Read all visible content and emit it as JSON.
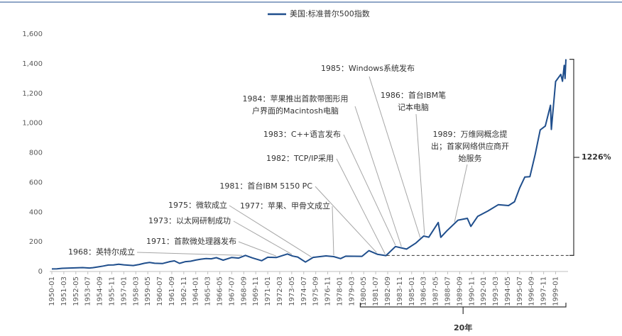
{
  "chart_data": {
    "type": "line",
    "legend": "美国:标准普尔500指数",
    "series": [
      {
        "name": "美国:标准普尔500指数",
        "color": "#1f4e8c",
        "values": [
          17,
          17.8,
          21.7,
          22.4,
          24.1,
          25,
          26.4,
          23.4,
          26,
          30.9,
          36.6,
          43.5,
          43.8,
          49.4,
          44.7,
          40,
          47.2,
          55.4,
          60.5,
          55.6,
          53.4,
          66.8,
          71.6,
          54.8,
          66.2,
          69.1,
          77,
          83.2,
          87.6,
          85.3,
          92.9,
          76.6,
          94.8,
          90.2,
          108.4,
          91.8,
          72.7,
          95.9,
          94,
          118,
          104,
          97.6,
          63.5,
          95.2,
          105.2,
          100.5,
          87,
          103.3,
          102.9,
          102,
          140.5,
          116.2,
          107.1,
          168.1,
          150.7,
          191.9,
          238.9,
          231.3,
          329.8,
          230.3,
          273.5,
          346,
          358,
          304,
          371,
          408,
          450,
          444,
          470,
          562,
          636,
          639,
          786,
          954,
          980,
          1120,
          957,
          1280,
          1328,
          1282,
          1389,
          1300,
          1430
        ]
      }
    ],
    "x": [
      "1950-01",
      "1950-07",
      "1951-01",
      "1951-07",
      "1952-01",
      "1952-07",
      "1953-01",
      "1953-09",
      "1954-01",
      "1954-07",
      "1955-01",
      "1955-07",
      "1956-01",
      "1956-07",
      "1957-01",
      "1957-12",
      "1958-07",
      "1959-01",
      "1959-07",
      "1960-01",
      "1960-10",
      "1961-07",
      "1961-12",
      "1962-06",
      "1963-01",
      "1963-07",
      "1964-01",
      "1964-07",
      "1965-01",
      "1965-07",
      "1966-01",
      "1966-09",
      "1967-07",
      "1968-03",
      "1968-11",
      "1969-07",
      "1970-06",
      "1971-01",
      "1971-11",
      "1972-12",
      "1973-06",
      "1973-12",
      "1974-09",
      "1975-06",
      "1976-09",
      "1977-06",
      "1978-02",
      "1978-08",
      "1979-06",
      "1980-03",
      "1980-11",
      "1981-09",
      "1982-07",
      "1983-06",
      "1984-07",
      "1985-06",
      "1986-03",
      "1986-09",
      "1987-08",
      "1987-11",
      "1988-06",
      "1989-07",
      "1990-06",
      "1990-10",
      "1991-06",
      "1992-06",
      "1993-06",
      "1994-06",
      "1995-01",
      "1995-07",
      "1996-01",
      "1996-07",
      "1997-01",
      "1997-07",
      "1998-01",
      "1998-07",
      "1998-08",
      "1999-01",
      "1999-07",
      "1999-09",
      "1999-11",
      "1999-12",
      "2000-01"
    ],
    "xlim": [
      "1950-01",
      "2000-01"
    ],
    "xticks": [
      "1950-01",
      "1951-03",
      "1952-05",
      "1953-07",
      "1954-09",
      "1955-11",
      "1957-01",
      "1958-03",
      "1959-05",
      "1960-07",
      "1961-09",
      "1962-11",
      "1964-01",
      "1965-03",
      "1966-05",
      "1967-07",
      "1968-09",
      "1969-11",
      "1971-01",
      "1972-03",
      "1973-05",
      "1974-07",
      "1975-09",
      "1976-11",
      "1978-01",
      "1979-03",
      "1980-05",
      "1981-07",
      "1982-09",
      "1983-11",
      "1985-01",
      "1986-03",
      "1987-05",
      "1988-07",
      "1989-09",
      "1990-11",
      "1992-01",
      "1993-03",
      "1994-05",
      "1995-07",
      "1996-09",
      "1997-11",
      "1999-01"
    ],
    "ylim": [
      0,
      1600
    ],
    "yticks": [
      0,
      200,
      400,
      600,
      800,
      {
        "value": 1000,
        "label": "1,000"
      },
      {
        "value": 1200,
        "label": "1,200"
      },
      {
        "value": 1400,
        "label": "1,400"
      },
      {
        "value": 1600,
        "label": "1,600"
      }
    ],
    "grid": false,
    "annotations": [
      {
        "text": [
          "1968：英特尔成立"
        ],
        "x": "1968-07"
      },
      {
        "text": [
          "1971：首款微处理器发布"
        ],
        "x": "1971-11"
      },
      {
        "text": [
          "1973：以太网研制成功"
        ],
        "x": "1973-05"
      },
      {
        "text": [
          "1975：微软成立"
        ],
        "x": "1975-04"
      },
      {
        "text": [
          "1977：苹果、甲骨文成立"
        ],
        "x": "1977-06"
      },
      {
        "text": [
          "1981：首台IBM 5150 PC"
        ],
        "x": "1981-08"
      },
      {
        "text": [
          "1982：TCP/IP采用"
        ],
        "x": "1982-06"
      },
      {
        "text": [
          "1983：C++语言发布"
        ],
        "x": "1983-06"
      },
      {
        "text": [
          "1984：苹果推出首款带图形用",
          "户界面的Macintosh电脑"
        ],
        "x": "1984-01"
      },
      {
        "text": [
          "1985：Windows系统发布"
        ],
        "x": "1985-11"
      },
      {
        "text": [
          "1986：首台IBM笔",
          "记本电脑"
        ],
        "x": "1986-04"
      },
      {
        "text": [
          "1989：万维网概念提",
          "出；首家网络供应商开",
          "始服务"
        ],
        "x": "1989-03"
      }
    ],
    "reference_line": {
      "value": 108,
      "from": "1982-08",
      "label": "1226%"
    },
    "period": {
      "from": "1980-01",
      "to": "2000-01",
      "label": "20年"
    }
  }
}
